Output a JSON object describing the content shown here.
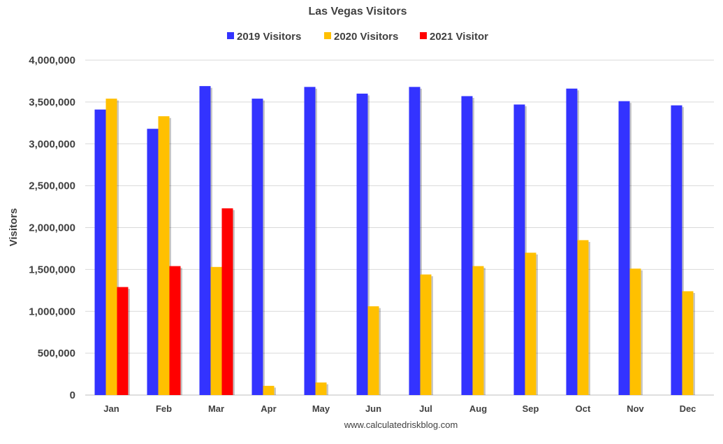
{
  "chart_data": {
    "type": "bar",
    "title": "Las Vegas Visitors",
    "ylabel": "Visitors",
    "xlabel": "",
    "source": "www.calculatedriskblog.com",
    "categories": [
      "Jan",
      "Feb",
      "Mar",
      "Apr",
      "May",
      "Jun",
      "Jul",
      "Aug",
      "Sep",
      "Oct",
      "Nov",
      "Dec"
    ],
    "ylim": [
      0,
      4000000
    ],
    "yticks": [
      0,
      500000,
      1000000,
      1500000,
      2000000,
      2500000,
      3000000,
      3500000,
      4000000
    ],
    "ytick_labels": [
      "0",
      "500,000",
      "1,000,000",
      "1,500,000",
      "2,000,000",
      "2,500,000",
      "3,000,000",
      "3,500,000",
      "4,000,000"
    ],
    "grid": true,
    "legend_position": "top",
    "series": [
      {
        "name": "2019 Visitors",
        "color": "#3333ff",
        "values": [
          3410000,
          3180000,
          3690000,
          3540000,
          3680000,
          3600000,
          3680000,
          3570000,
          3470000,
          3660000,
          3510000,
          3460000
        ]
      },
      {
        "name": "2020 Visitors",
        "color": "#ffc000",
        "values": [
          3540000,
          3330000,
          1530000,
          110000,
          150000,
          1060000,
          1440000,
          1540000,
          1700000,
          1850000,
          1510000,
          1240000
        ]
      },
      {
        "name": "2021 Visitor",
        "color": "#ff0000",
        "values": [
          1290000,
          1540000,
          2230000,
          null,
          null,
          null,
          null,
          null,
          null,
          null,
          null,
          null
        ]
      }
    ]
  }
}
